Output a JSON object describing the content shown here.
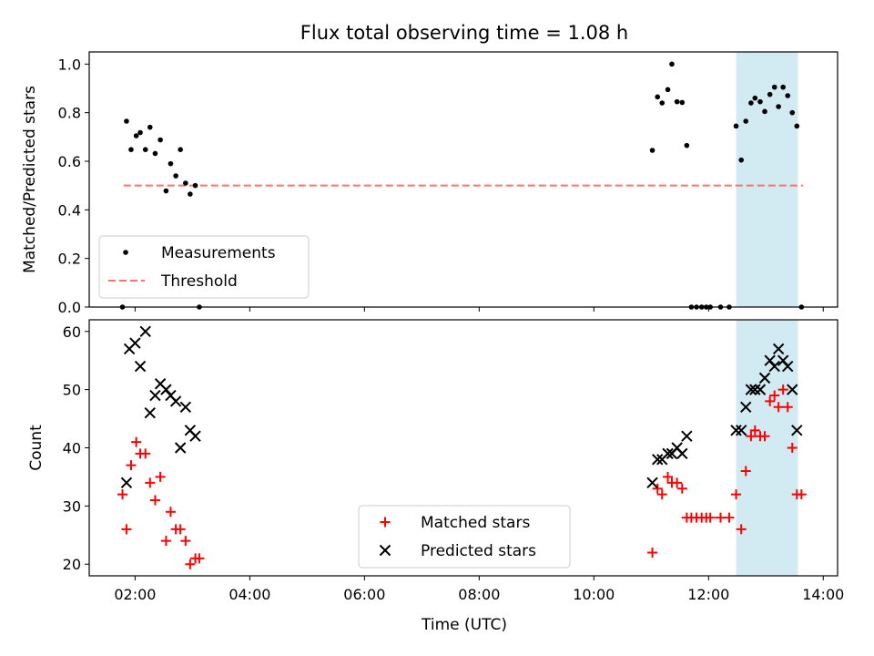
{
  "chart_data": {
    "title": "Flux total observing time = 1.08 h",
    "type": "scatter",
    "x_unit": "hours UTC",
    "xlabel": "Time (UTC)",
    "xlim": [
      1.2,
      14.25
    ],
    "x_ticks": [
      {
        "value": 2,
        "label": "02:00"
      },
      {
        "value": 4,
        "label": "04:00"
      },
      {
        "value": 6,
        "label": "06:00"
      },
      {
        "value": 8,
        "label": "08:00"
      },
      {
        "value": 10,
        "label": "10:00"
      },
      {
        "value": 12,
        "label": "12:00"
      },
      {
        "value": 14,
        "label": "14:00"
      }
    ],
    "highlight_span": {
      "x_start": 12.48,
      "x_end": 13.56,
      "color": "#add8e6"
    },
    "panels": [
      {
        "ylabel": "Matched/Predicted stars",
        "ylim": [
          0,
          1.05
        ],
        "y_ticks": [
          {
            "value": 0,
            "label": "0.0"
          },
          {
            "value": 0.2,
            "label": "0.2"
          },
          {
            "value": 0.4,
            "label": "0.4"
          },
          {
            "value": 0.6,
            "label": "0.6"
          },
          {
            "value": 0.8,
            "label": "0.8"
          },
          {
            "value": 1.0,
            "label": "1.0"
          }
        ],
        "legend": {
          "position": "lower-left",
          "entries": [
            {
              "label": "Measurements",
              "marker": "dot",
              "color": "#000000"
            },
            {
              "label": "Threshold",
              "marker": "dashed-line",
              "color": "#ff7070"
            }
          ]
        },
        "threshold": {
          "name": "Threshold",
          "value": 0.5,
          "x_range": [
            1.8,
            13.65
          ],
          "color": "#ff7070"
        },
        "series": [
          {
            "name": "Measurements",
            "marker": "dot",
            "color": "#000000",
            "points": [
              [
                1.78,
                0.0
              ],
              [
                1.85,
                0.765
              ],
              [
                1.93,
                0.648
              ],
              [
                2.02,
                0.705
              ],
              [
                2.09,
                0.718
              ],
              [
                2.18,
                0.648
              ],
              [
                2.26,
                0.74
              ],
              [
                2.35,
                0.632
              ],
              [
                2.44,
                0.688
              ],
              [
                2.54,
                0.478
              ],
              [
                2.62,
                0.59
              ],
              [
                2.71,
                0.54
              ],
              [
                2.79,
                0.648
              ],
              [
                2.88,
                0.51
              ],
              [
                2.96,
                0.465
              ],
              [
                3.05,
                0.5
              ],
              [
                3.12,
                0.0
              ],
              [
                11.02,
                0.645
              ],
              [
                11.11,
                0.865
              ],
              [
                11.19,
                0.84
              ],
              [
                11.29,
                0.895
              ],
              [
                11.36,
                1.0
              ],
              [
                11.45,
                0.845
              ],
              [
                11.54,
                0.842
              ],
              [
                11.62,
                0.665
              ],
              [
                11.7,
                0.0
              ],
              [
                11.79,
                0.0
              ],
              [
                11.88,
                0.0
              ],
              [
                11.96,
                0.0
              ],
              [
                12.03,
                0.0
              ],
              [
                12.21,
                0.0
              ],
              [
                12.36,
                0.0
              ],
              [
                12.48,
                0.745
              ],
              [
                12.57,
                0.605
              ],
              [
                12.65,
                0.765
              ],
              [
                12.74,
                0.84
              ],
              [
                12.81,
                0.86
              ],
              [
                12.9,
                0.845
              ],
              [
                12.98,
                0.805
              ],
              [
                13.07,
                0.875
              ],
              [
                13.15,
                0.905
              ],
              [
                13.22,
                0.825
              ],
              [
                13.3,
                0.905
              ],
              [
                13.38,
                0.87
              ],
              [
                13.46,
                0.8
              ],
              [
                13.54,
                0.745
              ],
              [
                13.62,
                0.0
              ]
            ]
          }
        ]
      },
      {
        "ylabel": "Count",
        "ylim": [
          18,
          62
        ],
        "y_ticks": [
          {
            "value": 20,
            "label": "20"
          },
          {
            "value": 30,
            "label": "30"
          },
          {
            "value": 40,
            "label": "40"
          },
          {
            "value": 50,
            "label": "50"
          },
          {
            "value": 60,
            "label": "60"
          }
        ],
        "legend": {
          "position": "lower-center",
          "entries": [
            {
              "label": "Matched stars",
              "marker": "plus",
              "color": "#ff0000"
            },
            {
              "label": "Predicted stars",
              "marker": "x",
              "color": "#000000"
            }
          ]
        },
        "series": [
          {
            "name": "Matched stars",
            "marker": "plus",
            "color": "#ff0000",
            "points": [
              [
                1.78,
                32
              ],
              [
                1.85,
                26
              ],
              [
                1.93,
                37
              ],
              [
                2.02,
                41
              ],
              [
                2.09,
                39
              ],
              [
                2.18,
                39
              ],
              [
                2.26,
                34
              ],
              [
                2.35,
                31
              ],
              [
                2.44,
                35
              ],
              [
                2.54,
                24
              ],
              [
                2.62,
                29
              ],
              [
                2.71,
                26
              ],
              [
                2.79,
                26
              ],
              [
                2.88,
                24
              ],
              [
                2.96,
                20
              ],
              [
                3.05,
                21
              ],
              [
                3.12,
                21
              ],
              [
                11.02,
                22
              ],
              [
                11.11,
                33
              ],
              [
                11.19,
                32
              ],
              [
                11.29,
                35
              ],
              [
                11.36,
                34
              ],
              [
                11.45,
                34
              ],
              [
                11.54,
                33
              ],
              [
                11.62,
                28
              ],
              [
                11.7,
                28
              ],
              [
                11.79,
                28
              ],
              [
                11.88,
                28
              ],
              [
                11.96,
                28
              ],
              [
                12.03,
                28
              ],
              [
                12.21,
                28
              ],
              [
                12.36,
                28
              ],
              [
                12.48,
                32
              ],
              [
                12.57,
                26
              ],
              [
                12.65,
                36
              ],
              [
                12.74,
                42
              ],
              [
                12.81,
                43
              ],
              [
                12.9,
                42
              ],
              [
                12.98,
                42
              ],
              [
                13.07,
                48
              ],
              [
                13.15,
                49
              ],
              [
                13.22,
                47
              ],
              [
                13.3,
                50
              ],
              [
                13.38,
                47
              ],
              [
                13.46,
                40
              ],
              [
                13.54,
                32
              ],
              [
                13.62,
                32
              ]
            ]
          },
          {
            "name": "Predicted stars",
            "marker": "x",
            "color": "#000000",
            "points": [
              [
                1.85,
                34
              ],
              [
                1.9,
                57
              ],
              [
                2.0,
                58
              ],
              [
                2.09,
                54
              ],
              [
                2.18,
                60
              ],
              [
                2.26,
                46
              ],
              [
                2.35,
                49
              ],
              [
                2.44,
                51
              ],
              [
                2.54,
                50
              ],
              [
                2.62,
                49
              ],
              [
                2.71,
                48
              ],
              [
                2.79,
                40
              ],
              [
                2.88,
                47
              ],
              [
                2.96,
                43
              ],
              [
                3.05,
                42
              ],
              [
                11.02,
                34
              ],
              [
                11.11,
                38
              ],
              [
                11.19,
                38
              ],
              [
                11.29,
                39
              ],
              [
                11.36,
                39
              ],
              [
                11.45,
                40
              ],
              [
                11.54,
                39
              ],
              [
                11.62,
                42
              ],
              [
                12.48,
                43
              ],
              [
                12.57,
                43
              ],
              [
                12.65,
                47
              ],
              [
                12.74,
                50
              ],
              [
                12.81,
                50
              ],
              [
                12.9,
                50
              ],
              [
                12.98,
                52
              ],
              [
                13.07,
                55
              ],
              [
                13.15,
                54
              ],
              [
                13.22,
                57
              ],
              [
                13.3,
                55
              ],
              [
                13.38,
                54
              ],
              [
                13.46,
                50
              ],
              [
                13.54,
                43
              ]
            ]
          }
        ]
      }
    ]
  }
}
